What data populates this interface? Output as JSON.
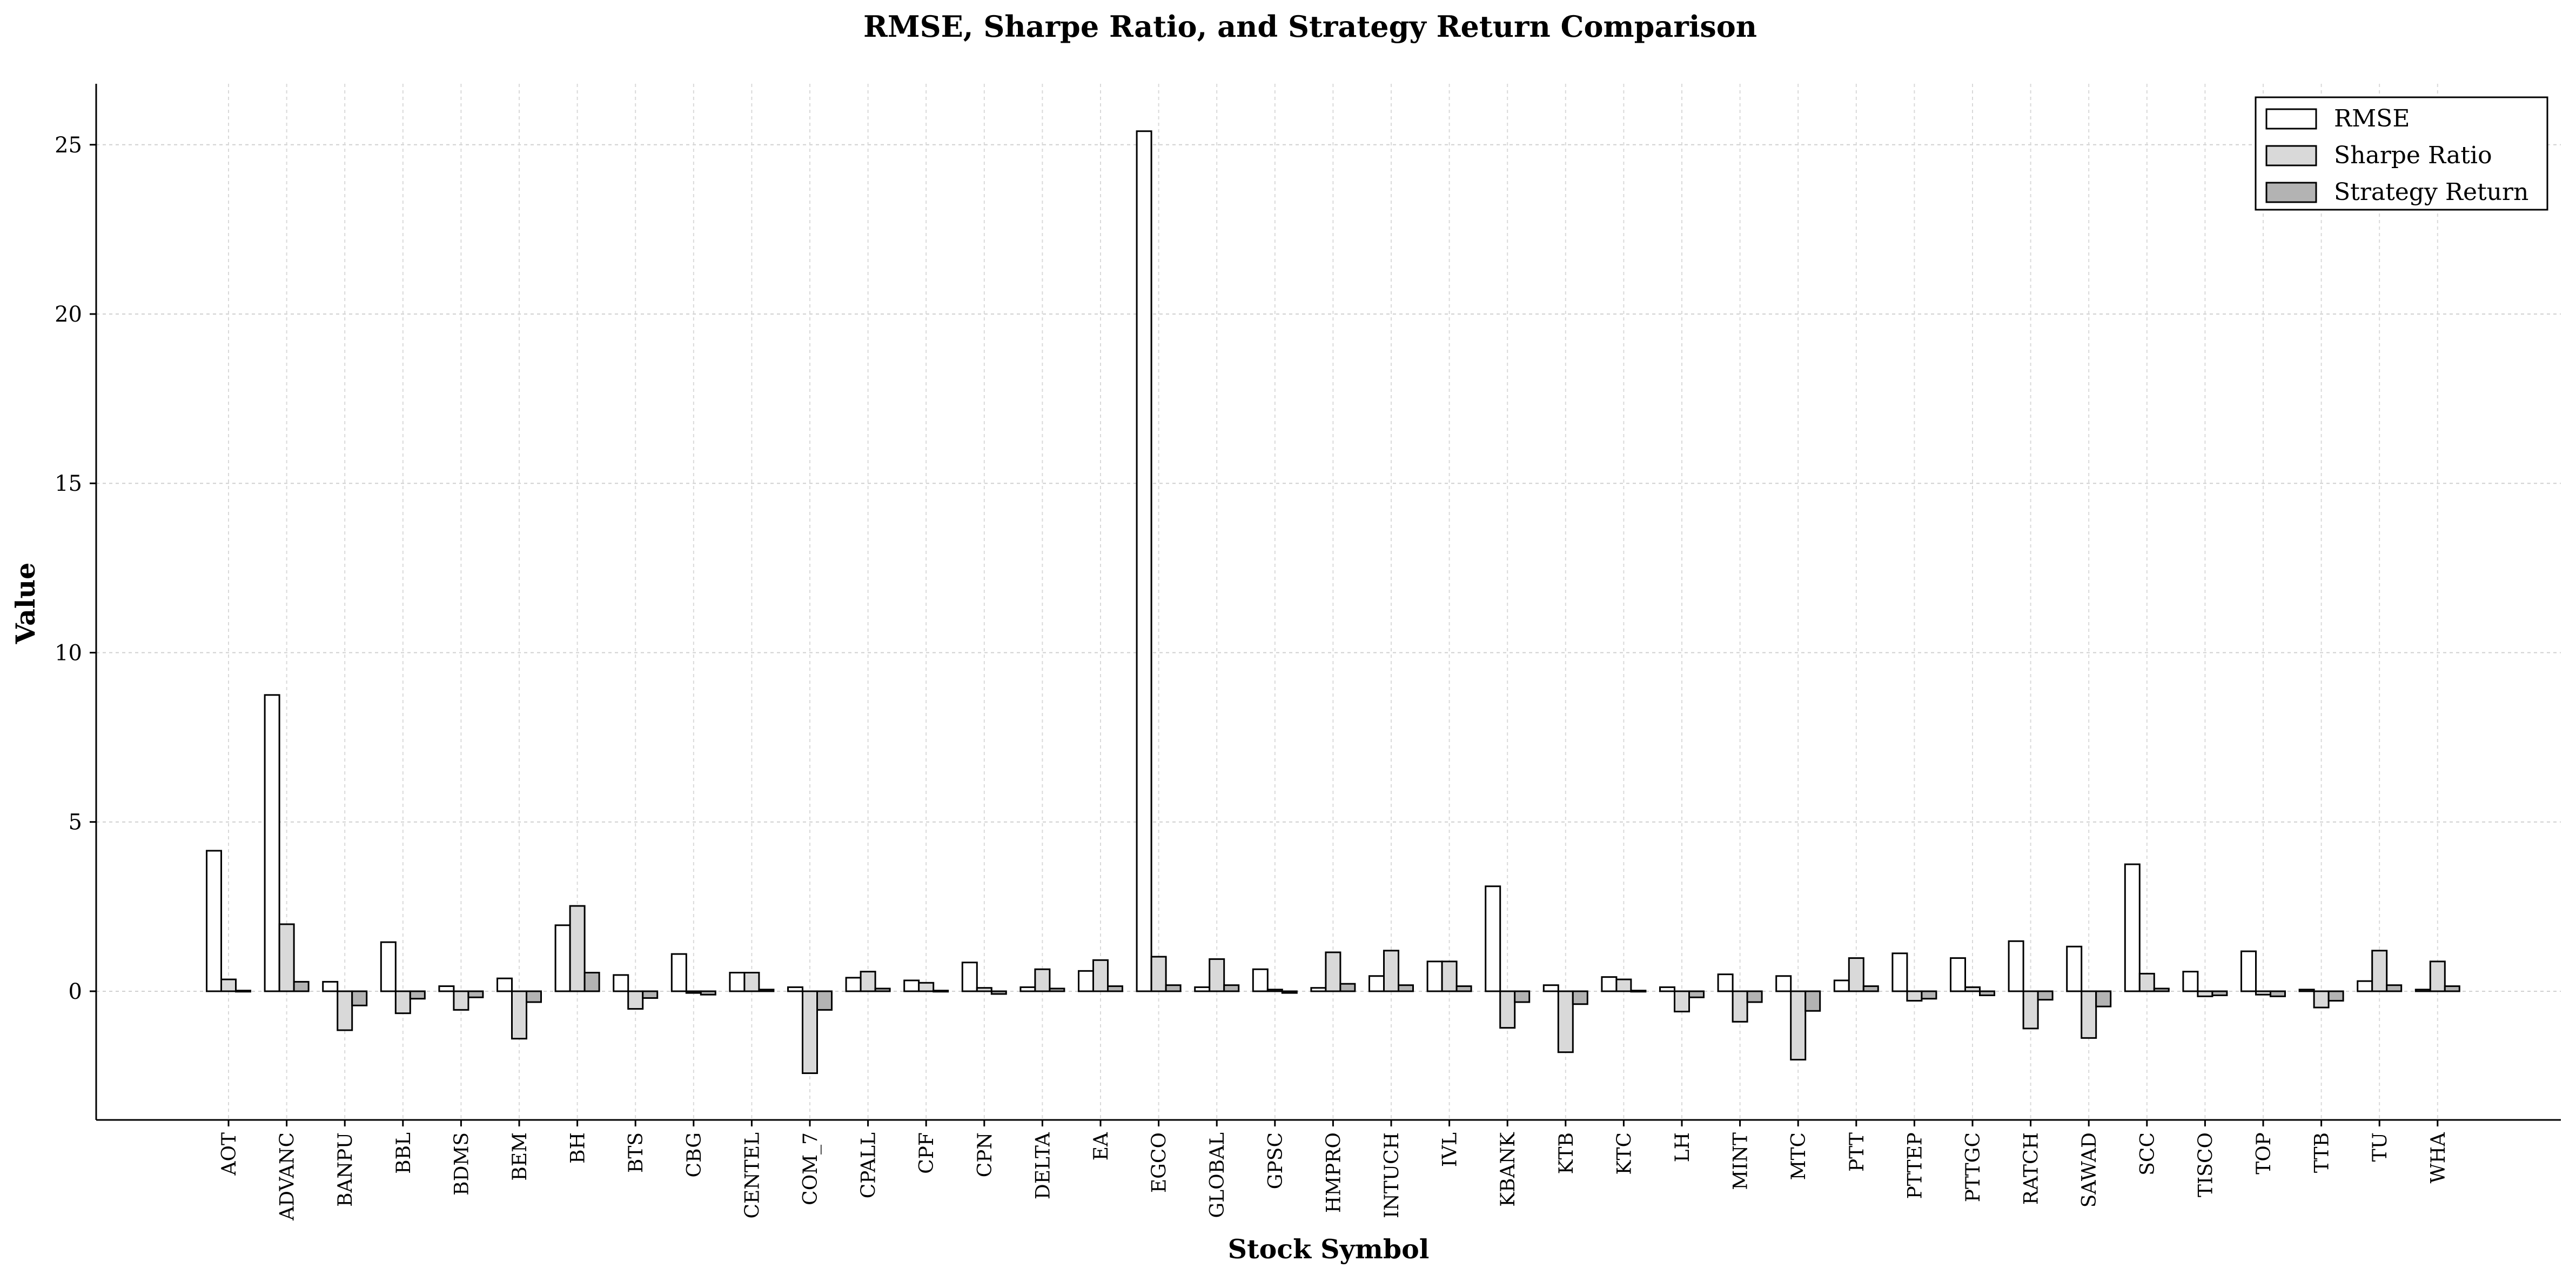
{
  "chart_data": {
    "type": "bar",
    "title": "RMSE, Sharpe Ratio, and Strategy Return Comparison",
    "xlabel": "Stock Symbol",
    "ylabel": "Value",
    "ylim": [
      -3.8,
      26.8
    ],
    "yticks": [
      0,
      5,
      10,
      15,
      20,
      25
    ],
    "grid": true,
    "legend_position": "top-right",
    "categories": [
      "AOT",
      "ADVANC",
      "BANPU",
      "BBL",
      "BDMS",
      "BEM",
      "BH",
      "BTS",
      "CBG",
      "CENTEL",
      "COM_7",
      "CPALL",
      "CPF",
      "CPN",
      "DELTA",
      "EA",
      "EGCO",
      "GLOBAL",
      "GPSC",
      "HMPRO",
      "INTUCH",
      "IVL",
      "KBANK",
      "KTB",
      "KTC",
      "LH",
      "MINT",
      "MTC",
      "PTT",
      "PTTEP",
      "PTTGC",
      "RATCH",
      "SAWAD",
      "SCC",
      "TISCO",
      "TOP",
      "TTB",
      "TU",
      "WHA"
    ],
    "series": [
      {
        "name": "RMSE",
        "color": "#ffffff",
        "values": [
          4.15,
          8.75,
          0.28,
          1.45,
          0.15,
          0.38,
          1.95,
          0.48,
          1.1,
          0.55,
          0.12,
          0.4,
          0.32,
          0.85,
          0.12,
          0.6,
          25.4,
          0.12,
          0.65,
          0.1,
          0.45,
          0.88,
          3.1,
          0.18,
          0.42,
          0.12,
          0.5,
          0.45,
          0.32,
          1.12,
          0.98,
          1.48,
          1.32,
          3.75,
          0.58,
          1.18,
          0.05,
          0.3,
          0.05
        ]
      },
      {
        "name": "Sharpe Ratio",
        "color": "#d9d9d9",
        "values": [
          0.35,
          1.98,
          -1.15,
          -0.65,
          -0.55,
          -1.4,
          2.52,
          -0.52,
          -0.05,
          0.55,
          -2.42,
          0.58,
          0.25,
          0.1,
          0.65,
          0.92,
          1.02,
          0.95,
          0.05,
          1.15,
          1.2,
          0.88,
          -1.08,
          -1.8,
          0.35,
          -0.6,
          -0.9,
          -2.02,
          0.98,
          -0.28,
          0.12,
          -1.1,
          -1.38,
          0.52,
          -0.15,
          -0.1,
          -0.48,
          1.2,
          0.88
        ]
      },
      {
        "name": "Strategy Return",
        "color": "#b3b3b3",
        "values": [
          0.02,
          0.28,
          -0.42,
          -0.22,
          -0.18,
          -0.32,
          0.55,
          -0.2,
          -0.1,
          0.05,
          -0.55,
          0.08,
          0.02,
          -0.08,
          0.08,
          0.15,
          0.18,
          0.18,
          -0.05,
          0.22,
          0.18,
          0.15,
          -0.32,
          -0.38,
          0.02,
          -0.18,
          -0.32,
          -0.58,
          0.15,
          -0.22,
          -0.12,
          -0.25,
          -0.45,
          0.08,
          -0.12,
          -0.15,
          -0.28,
          0.18,
          0.15
        ]
      }
    ]
  }
}
